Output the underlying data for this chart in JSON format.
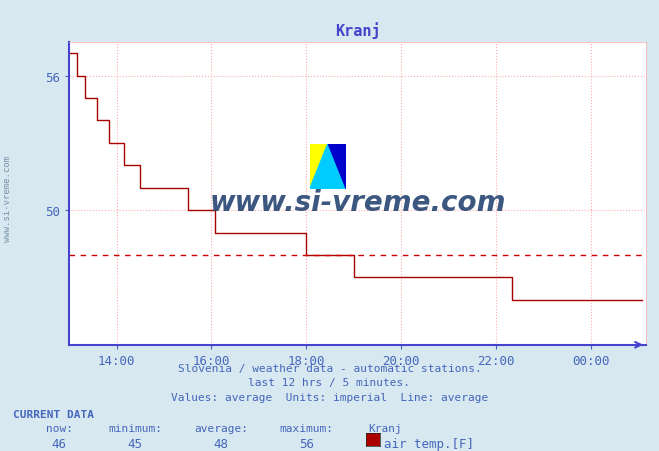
{
  "title": "Kranj",
  "title_color": "#4444cc",
  "bg_color": "#d8e8f0",
  "plot_bg_color": "#ffffff",
  "grid_color": "#ffaaaa",
  "line_color": "#aa0000",
  "avg_line_color": "#cc0000",
  "axis_color": "#4444cc",
  "tick_color": "#4466bb",
  "watermark_text": "www.si-vreme.com",
  "watermark_color": "#1a3a6a",
  "watermark_alpha": 0.85,
  "side_watermark": "www.si-vreme.com",
  "ylim_min": 44.0,
  "ylim_max": 57.5,
  "yticks": [
    50,
    56
  ],
  "avg_value": 48,
  "min_value": 45,
  "max_value": 56,
  "now_value": 46,
  "subtitle1": "Slovenia / weather data - automatic stations.",
  "subtitle2": "last 12 hrs / 5 minutes.",
  "subtitle3": "Values: average  Units: imperial  Line: average",
  "current_data_label": "CURRENT DATA",
  "now_label": "now:",
  "minimum_label": "minimum:",
  "average_label": "average:",
  "maximum_label": "maximum:",
  "station_label": "Kranj",
  "series_label": "air temp.[F]",
  "x_ticks": [
    "14:00",
    "16:00",
    "18:00",
    "20:00",
    "22:00",
    "00:00"
  ],
  "x_tick_positions": [
    60,
    180,
    300,
    420,
    540,
    660
  ],
  "total_minutes": 730,
  "time_points": [
    0,
    5,
    10,
    15,
    20,
    25,
    30,
    35,
    40,
    45,
    50,
    55,
    60,
    65,
    70,
    75,
    80,
    85,
    90,
    95,
    100,
    105,
    110,
    115,
    120,
    125,
    130,
    135,
    140,
    145,
    150,
    155,
    160,
    165,
    170,
    175,
    180,
    185,
    190,
    195,
    200,
    205,
    210,
    215,
    220,
    225,
    230,
    235,
    240,
    245,
    250,
    255,
    260,
    265,
    270,
    275,
    280,
    285,
    290,
    295,
    300,
    305,
    310,
    315,
    320,
    325,
    330,
    335,
    340,
    345,
    350,
    355,
    360,
    365,
    370,
    375,
    380,
    385,
    390,
    395,
    400,
    405,
    410,
    415,
    420,
    425,
    430,
    435,
    440,
    445,
    450,
    455,
    460,
    465,
    470,
    475,
    480,
    485,
    490,
    495,
    500,
    505,
    510,
    515,
    520,
    525,
    530,
    535,
    540,
    545,
    550,
    555,
    560,
    565,
    570,
    575,
    580,
    585,
    590,
    595,
    600,
    605,
    610,
    615,
    620,
    625,
    630,
    635,
    640,
    645,
    650,
    655,
    660,
    665,
    670,
    675,
    680,
    685,
    690,
    695,
    700,
    705,
    710,
    715,
    720,
    725
  ],
  "temp_values": [
    57,
    57,
    56,
    56,
    55,
    55,
    55,
    54,
    54,
    54,
    53,
    53,
    53,
    53,
    52,
    52,
    52,
    52,
    51,
    51,
    51,
    51,
    51,
    51,
    51,
    51,
    51,
    51,
    51,
    51,
    50,
    50,
    50,
    50,
    50,
    50,
    50,
    49,
    49,
    49,
    49,
    49,
    49,
    49,
    49,
    49,
    49,
    49,
    49,
    49,
    49,
    49,
    49,
    49,
    49,
    49,
    49,
    49,
    49,
    49,
    48,
    48,
    48,
    48,
    48,
    48,
    48,
    48,
    48,
    48,
    48,
    48,
    47,
    47,
    47,
    47,
    47,
    47,
    47,
    47,
    47,
    47,
    47,
    47,
    47,
    47,
    47,
    47,
    47,
    47,
    47,
    47,
    47,
    47,
    47,
    47,
    47,
    47,
    47,
    47,
    47,
    47,
    47,
    47,
    47,
    47,
    47,
    47,
    47,
    47,
    47,
    47,
    46,
    46,
    46,
    46,
    46,
    46,
    46,
    46,
    46,
    46,
    46,
    46,
    46,
    46,
    46,
    46,
    46,
    46,
    46,
    46,
    46,
    46,
    46,
    46,
    46,
    46,
    46,
    46,
    46,
    46,
    46,
    46,
    46,
    46
  ]
}
